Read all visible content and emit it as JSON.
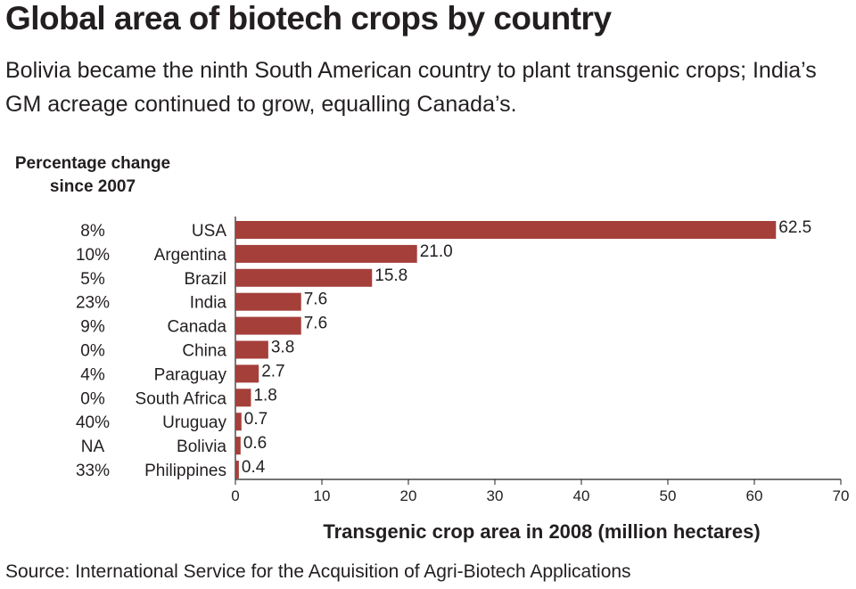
{
  "header": {
    "title": "Global area of biotech crops by country",
    "subtitle": "Bolivia became the ninth South American country to plant transgenic crops; India’s GM acreage continued to grow, equalling Canada’s.",
    "pct_header_line1": "Percentage change",
    "pct_header_line2": "since 2007"
  },
  "footer": {
    "source": "Source: International Service for the Acquisition of Agri-Biotech Applications"
  },
  "chart_data": {
    "type": "bar",
    "orientation": "horizontal",
    "categories": [
      "USA",
      "Argentina",
      "Brazil",
      "India",
      "Canada",
      "China",
      "Paraguay",
      "South Africa",
      "Uruguay",
      "Bolivia",
      "Philippines"
    ],
    "values": [
      62.5,
      21.0,
      15.8,
      7.6,
      7.6,
      3.8,
      2.7,
      1.8,
      0.7,
      0.6,
      0.4
    ],
    "value_labels": [
      "62.5",
      "21.0",
      "15.8",
      "7.6",
      "7.6",
      "3.8",
      "2.7",
      "1.8",
      "0.7",
      "0.6",
      "0.4"
    ],
    "percent_change": [
      "8%",
      "10%",
      "5%",
      "23%",
      "9%",
      "0%",
      "4%",
      "0%",
      "40%",
      "NA",
      "33%"
    ],
    "xlabel": "Transgenic crop area in 2008 (million hectares)",
    "xlim": [
      0,
      70
    ],
    "xticks": [
      0,
      10,
      20,
      30,
      40,
      50,
      60,
      70
    ],
    "grid": false,
    "bar_color": "#a53f3a"
  }
}
